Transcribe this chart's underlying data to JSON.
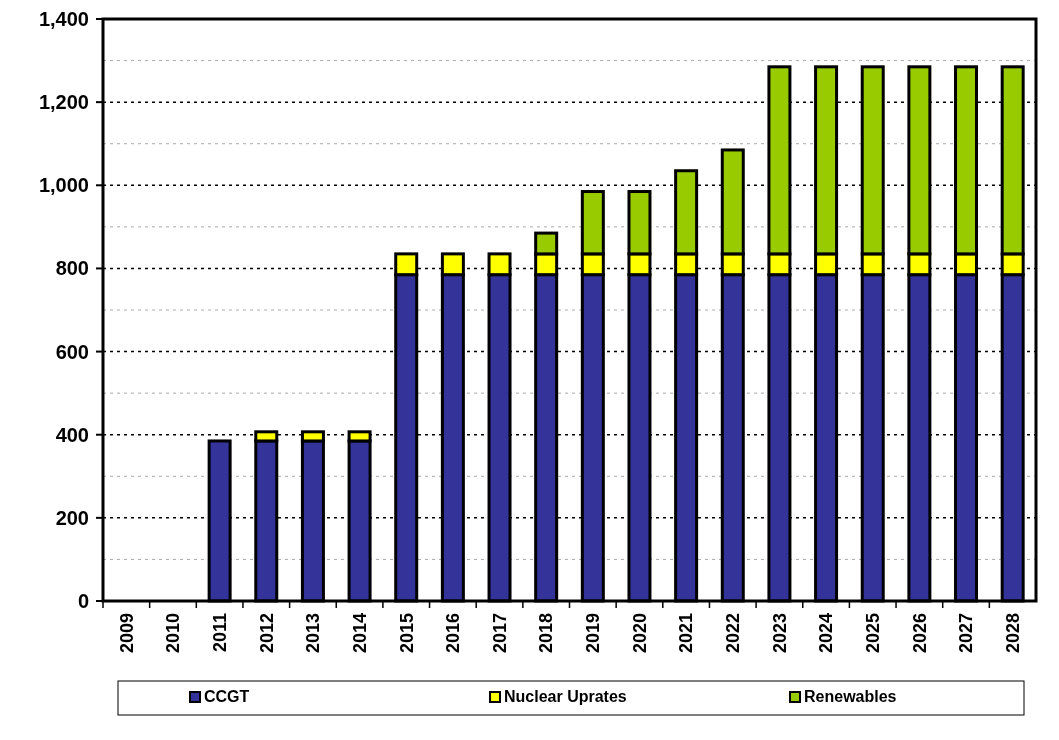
{
  "chart_data": {
    "type": "bar",
    "stacked": true,
    "categories": [
      "2009",
      "2010",
      "2011",
      "2012",
      "2013",
      "2014",
      "2015",
      "2016",
      "2017",
      "2018",
      "2019",
      "2020",
      "2021",
      "2022",
      "2023",
      "2024",
      "2025",
      "2026",
      "2027",
      "2028"
    ],
    "series": [
      {
        "name": "CCGT",
        "color": "#333399",
        "values": [
          0,
          0,
          385,
          385,
          385,
          385,
          785,
          785,
          785,
          785,
          785,
          785,
          785,
          785,
          785,
          785,
          785,
          785,
          785,
          785
        ]
      },
      {
        "name": "Nuclear Uprates",
        "color": "#ffff00",
        "values": [
          0,
          0,
          0,
          22,
          22,
          22,
          50,
          50,
          50,
          50,
          50,
          50,
          50,
          50,
          50,
          50,
          50,
          50,
          50,
          50
        ]
      },
      {
        "name": "Renewables",
        "color": "#99cc00",
        "values": [
          0,
          0,
          0,
          0,
          0,
          0,
          0,
          0,
          0,
          50,
          150,
          150,
          200,
          250,
          450,
          450,
          450,
          450,
          450,
          450
        ]
      }
    ],
    "ylim": [
      0,
      1400
    ],
    "yticks": [
      0,
      {
        "value": 200,
        "label": "200"
      },
      {
        "value": 400,
        "label": "400"
      },
      {
        "value": 600,
        "label": "600"
      },
      {
        "value": 800,
        "label": "800"
      },
      {
        "value": 1000,
        "label": "1,000"
      },
      {
        "value": 1200,
        "label": "1,200"
      },
      {
        "value": 1400,
        "label": "1,400"
      }
    ],
    "grid": "y",
    "legend": "bottom"
  }
}
